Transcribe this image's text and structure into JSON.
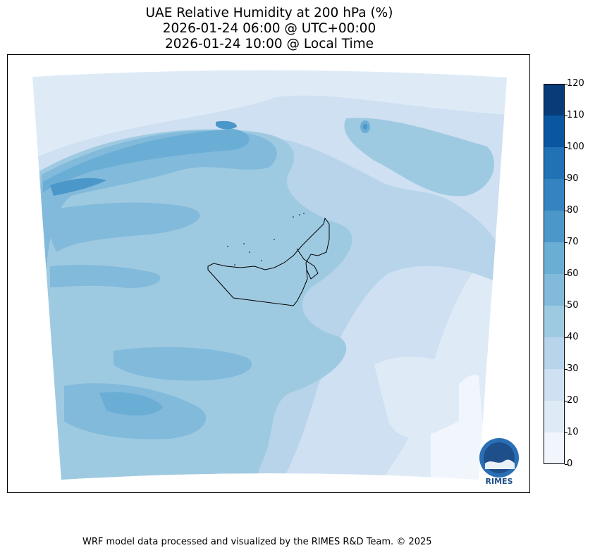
{
  "title": {
    "line1": "UAE Relative Humidity at 200 hPa (%)",
    "line2": "2026-01-24 06:00 @ UTC+00:00",
    "line3": "2026-01-24 10:00 @ Local Time"
  },
  "colorbar": {
    "ticks": [
      "0",
      "10",
      "20",
      "30",
      "40",
      "50",
      "60",
      "70",
      "80",
      "90",
      "100",
      "110",
      "120"
    ],
    "colors": [
      "#f0f6fc",
      "#deebf7",
      "#cfe0f2",
      "#b7d4ea",
      "#9ecae1",
      "#82badb",
      "#6aaed6",
      "#4b97c9",
      "#3583c0",
      "#2071b5",
      "#0a56a0",
      "#083b7a"
    ]
  },
  "logo": {
    "text": "RIMES"
  },
  "footer": "WRF model data processed and visualized by the RIMES R&D Team. © 2025"
}
